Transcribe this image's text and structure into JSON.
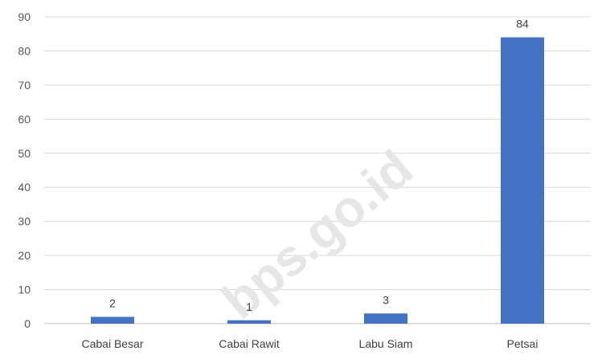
{
  "chart_data": {
    "type": "bar",
    "title": "",
    "xlabel": "",
    "ylabel": "",
    "categories": [
      "Cabai Besar",
      "Cabai Rawit",
      "Labu Siam",
      "Petsai"
    ],
    "values": [
      2,
      1,
      3,
      84
    ],
    "data_labels": [
      "2",
      "1",
      "3",
      "84"
    ],
    "y_ticks": [
      "0",
      "10",
      "20",
      "30",
      "40",
      "50",
      "60",
      "70",
      "80",
      "90"
    ],
    "ylim": [
      0,
      90
    ],
    "grid": true,
    "legend": "none",
    "bar_color": "#4472C4",
    "grid_color": "#d9d9d9"
  },
  "watermark": "bps.go.id"
}
